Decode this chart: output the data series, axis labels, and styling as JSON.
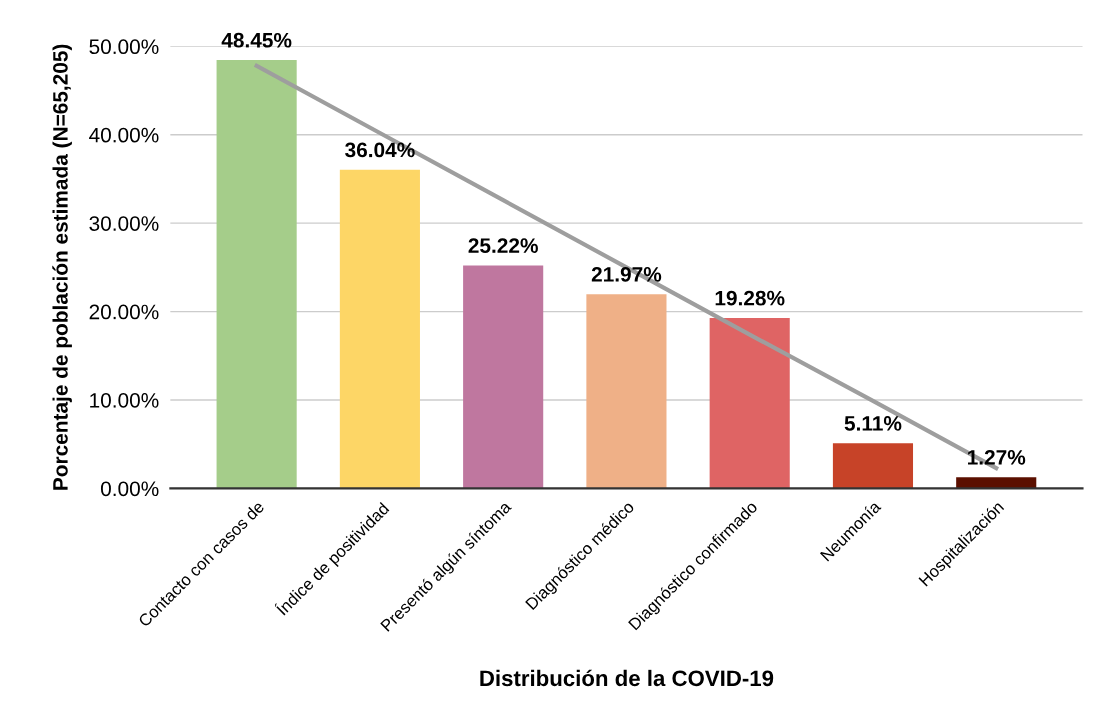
{
  "chart_data": {
    "type": "bar",
    "xlabel": "Distribución de la COVID-19",
    "ylabel": "Porcentaje de población estimada (N=65,205)",
    "categories": [
      "Contacto con casos de",
      "Índice de positividad",
      "Presentó algún síntoma",
      "Diagnóstico médico",
      "Diagnóstico confirmado",
      "Neumonía",
      "Hospitalización"
    ],
    "series": [
      {
        "values": [
          48.45,
          36.04,
          25.22,
          21.97,
          19.28,
          5.11,
          1.27
        ],
        "colors": [
          "#a5cd8a",
          "#fdd666",
          "#bf779f",
          "#efb087",
          "#df6464",
          "#c74328",
          "#5b0f00"
        ],
        "value_labels": [
          "48.45%",
          "36.04%",
          "25.22%",
          "21.97%",
          "19.28%",
          "5.11%",
          "1.27%"
        ]
      },
      {
        "type": "line",
        "color": "#9e9e9e",
        "values": [
          47.8,
          40.2,
          32.6,
          25.0,
          17.4,
          9.9,
          2.3
        ]
      }
    ],
    "ylim": [
      0,
      50
    ],
    "yticks": [
      {
        "value": 0,
        "label": "0.00%"
      },
      {
        "value": 10,
        "label": "10.00%"
      },
      {
        "value": 20,
        "label": "20.00%"
      },
      {
        "value": 30,
        "label": "30.00%"
      },
      {
        "value": 40,
        "label": "40.00%"
      },
      {
        "value": 50,
        "label": "50.00%"
      }
    ],
    "grid": "y",
    "legend": false
  }
}
